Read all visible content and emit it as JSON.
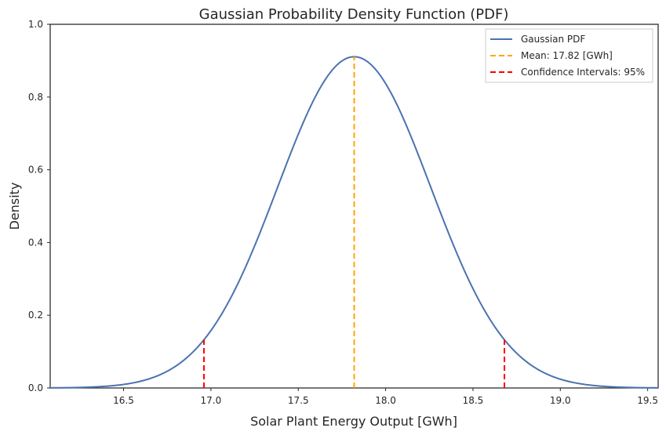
{
  "chart_data": {
    "type": "line",
    "title": "Gaussian Probability Density Function (PDF)",
    "xlabel": "Solar Plant Energy Output [GWh]",
    "ylabel": "Density",
    "xlim": [
      16.08,
      19.56
    ],
    "ylim": [
      0.0,
      1.0
    ],
    "xticks": [
      "16.5",
      "17.0",
      "17.5",
      "18.0",
      "18.5",
      "19.0",
      "19.5"
    ],
    "xtick_values": [
      16.5,
      17.0,
      17.5,
      18.0,
      18.5,
      19.0,
      19.5
    ],
    "yticks": [
      "0.0",
      "0.2",
      "0.4",
      "0.6",
      "0.8",
      "1.0"
    ],
    "ytick_values": [
      0.0,
      0.2,
      0.4,
      0.6,
      0.8,
      1.0
    ],
    "grid": false,
    "legend_position": "top-right",
    "series": [
      {
        "name": "Gaussian PDF",
        "kind": "gaussian",
        "mean": 17.82,
        "std": 0.438,
        "x_range": [
          16.08,
          19.56
        ],
        "color": "#4c72b0",
        "style": "solid"
      }
    ],
    "reference_lines": [
      {
        "name": "Mean: 17.82 [GWh]",
        "x": [
          17.82
        ],
        "color": "#ffa500",
        "style": "dashed"
      },
      {
        "name": "Confidence Intervals: 95%",
        "x": [
          16.96,
          18.68
        ],
        "color": "#ff0000",
        "style": "dashed"
      }
    ]
  }
}
